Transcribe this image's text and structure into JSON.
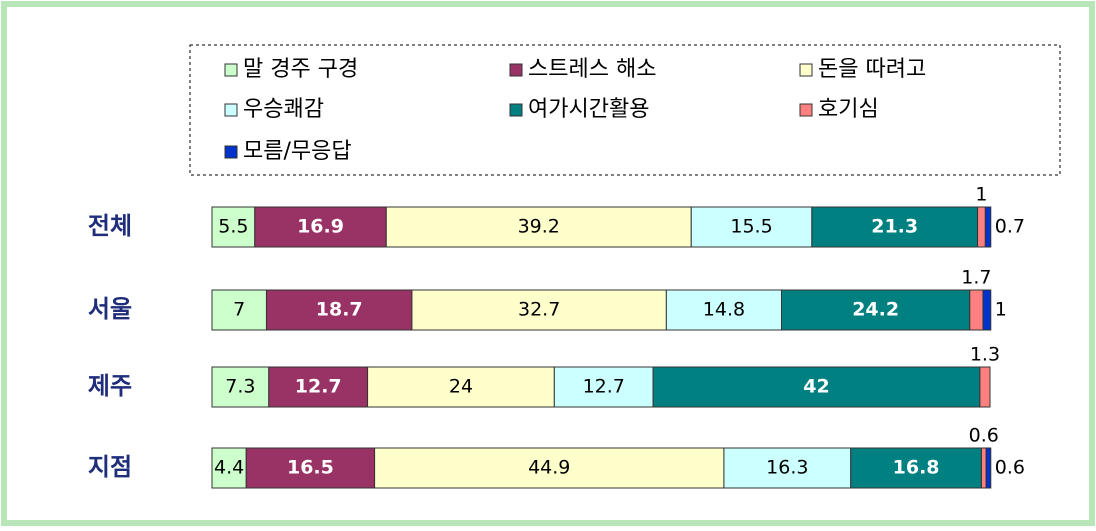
{
  "chart_data": {
    "type": "stacked-bar-horizontal",
    "categories": [
      "전체",
      "서울",
      "제주",
      "지점"
    ],
    "series": [
      {
        "name": "말 경주 구경",
        "color": "#ccffcc",
        "values": [
          5.5,
          7.0,
          7.3,
          4.4
        ]
      },
      {
        "name": "스트레스 해소",
        "color": "#993366",
        "values": [
          16.9,
          18.7,
          12.7,
          16.5
        ]
      },
      {
        "name": "돈을 따려고",
        "color": "#ffffcc",
        "values": [
          39.2,
          32.7,
          24.0,
          44.9
        ]
      },
      {
        "name": "우승쾌감",
        "color": "#ccffff",
        "values": [
          15.5,
          14.8,
          12.7,
          16.3
        ]
      },
      {
        "name": "여가시간활용",
        "color": "#008080",
        "values": [
          21.3,
          24.2,
          42.0,
          16.8
        ]
      },
      {
        "name": "호기심",
        "color": "#ff8080",
        "values": [
          1.0,
          1.7,
          1.3,
          0.6
        ]
      },
      {
        "name": "모름/무응답",
        "color": "#0033cc",
        "values": [
          0.7,
          1.0,
          null,
          0.6
        ]
      }
    ]
  }
}
